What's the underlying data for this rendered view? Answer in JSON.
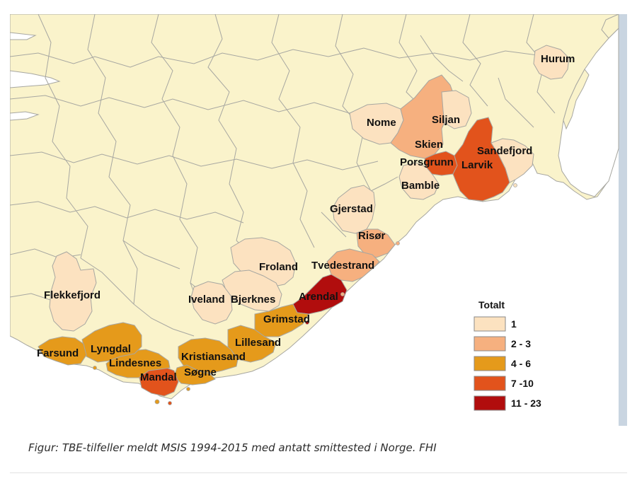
{
  "colors": {
    "land": "#FAF3CB",
    "sea": "#FFFFFF",
    "border": "#A7A7A1",
    "right_edge": "#C9D5E1",
    "class_1": "#FCE2C0",
    "class_2_3": "#F6B07F",
    "class_4_6": "#E59A1B",
    "class_7_10": "#E2531C",
    "class_11_23": "#B10D0D"
  },
  "legend": {
    "title": "Totalt",
    "items": [
      {
        "label": "1",
        "color": "#FCE2C0"
      },
      {
        "label": "2 - 3",
        "color": "#F6B07F"
      },
      {
        "label": "4 - 6",
        "color": "#E59A1B"
      },
      {
        "label": "7 -10",
        "color": "#E2531C"
      },
      {
        "label": "11 - 23",
        "color": "#B10D0D"
      }
    ]
  },
  "municipalities": [
    {
      "name": "Hurum",
      "class": "1"
    },
    {
      "name": "Nome",
      "class": "1"
    },
    {
      "name": "Siljan",
      "class": "1"
    },
    {
      "name": "Skien",
      "class": "2 - 3"
    },
    {
      "name": "Porsgrunn",
      "class": "7 -10"
    },
    {
      "name": "Larvik",
      "class": "7 -10"
    },
    {
      "name": "Sandefjord",
      "class": "1"
    },
    {
      "name": "Bamble",
      "class": "1"
    },
    {
      "name": "Gjerstad",
      "class": "1"
    },
    {
      "name": "Risør",
      "class": "2 - 3"
    },
    {
      "name": "Froland",
      "class": "1"
    },
    {
      "name": "Tvedestrand",
      "class": "2 - 3"
    },
    {
      "name": "Flekkefjord",
      "class": "1"
    },
    {
      "name": "Iveland",
      "class": "1"
    },
    {
      "name": "Bjerknes",
      "class": "1"
    },
    {
      "name": "Arendal",
      "class": "11 - 23"
    },
    {
      "name": "Grimstad",
      "class": "4 - 6"
    },
    {
      "name": "Lillesand",
      "class": "4 - 6"
    },
    {
      "name": "Farsund",
      "class": "4 - 6"
    },
    {
      "name": "Lyngdal",
      "class": "4 - 6"
    },
    {
      "name": "Lindesnes",
      "class": "4 - 6"
    },
    {
      "name": "Kristiansand",
      "class": "4 - 6"
    },
    {
      "name": "Søgne",
      "class": "4 - 6"
    },
    {
      "name": "Mandal",
      "class": "7 -10"
    }
  ],
  "caption": "Figur: TBE-tilfeller meldt MSIS 1994-2015 med antatt smittested i Norge. FHI"
}
